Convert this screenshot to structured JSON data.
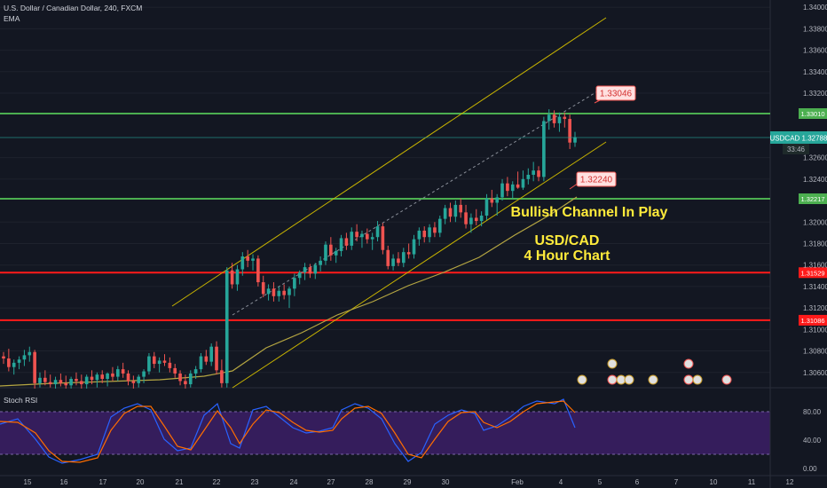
{
  "header": {
    "title": "U.S. Dollar / Canadian Dollar, 240, FXCM",
    "indicator": "EMA"
  },
  "symbol": "USDCAD",
  "price_badge": "USDCAD  1.32788",
  "countdown": "33:46",
  "oscillator_label": "Stoch RSI",
  "colors": {
    "background": "#131722",
    "up": "#26a69a",
    "down": "#ef5350",
    "support_green": "#4caf50",
    "support_red": "#ff1a1a",
    "channel": "#c8b400",
    "ema": "#b5a642",
    "annotation_text": "#ffeb3b",
    "osc_band": "#3c1f66",
    "k_line": "#2962ff",
    "d_line": "#ff6d00"
  },
  "annotations": {
    "headline": "Bullish Channel In Play",
    "pair": "USD/CAD",
    "timeframe": "4 Hour Chart",
    "callout_high": "1.33046",
    "callout_low": "1.32240"
  },
  "chart_data": [
    {
      "type": "candlestick",
      "title": "U.S. Dollar / Canadian Dollar, 240, FXCM",
      "x_ticks": [
        "15",
        "16",
        "17",
        "20",
        "21",
        "22",
        "23",
        "24",
        "27",
        "28",
        "29",
        "30",
        "Feb",
        "4",
        "5",
        "6",
        "7",
        "10",
        "11",
        "12"
      ],
      "y_ticks": [
        "1.34000",
        "1.33800",
        "1.33600",
        "1.33400",
        "1.33200",
        "1.32600",
        "1.32400",
        "1.32000",
        "1.31800",
        "1.31600",
        "1.31400",
        "1.31200",
        "1.31000",
        "1.30800",
        "1.30600"
      ],
      "ylim": [
        1.3045,
        1.3403
      ],
      "levels": [
        {
          "label": "1.33010",
          "value": 1.3301,
          "color": "#4caf50"
        },
        {
          "label": "1.32217",
          "value": 1.32217,
          "color": "#4caf50"
        },
        {
          "label": "1.31529",
          "value": 1.31529,
          "color": "#ff1a1a"
        },
        {
          "label": "1.31086",
          "value": 1.31086,
          "color": "#ff1a1a"
        }
      ],
      "last_price": 1.32788,
      "candles": [
        [
          1.3075,
          1.3079,
          1.3068,
          1.3073
        ],
        [
          1.3073,
          1.3082,
          1.3061,
          1.3065
        ],
        [
          1.3065,
          1.3072,
          1.3058,
          1.3069
        ],
        [
          1.3069,
          1.3075,
          1.3063,
          1.3072
        ],
        [
          1.3072,
          1.3081,
          1.3066,
          1.3076
        ],
        [
          1.3076,
          1.3084,
          1.307,
          1.3079
        ],
        [
          1.3079,
          1.3081,
          1.3045,
          1.305
        ],
        [
          1.305,
          1.306,
          1.3046,
          1.3055
        ],
        [
          1.3055,
          1.3062,
          1.3048,
          1.3051
        ],
        [
          1.3051,
          1.3058,
          1.3046,
          1.3049
        ],
        [
          1.3049,
          1.3056,
          1.3045,
          1.3053
        ],
        [
          1.3053,
          1.3059,
          1.3047,
          1.305
        ],
        [
          1.305,
          1.3057,
          1.3045,
          1.3048
        ],
        [
          1.3048,
          1.3056,
          1.3045,
          1.3054
        ],
        [
          1.3054,
          1.306,
          1.3048,
          1.3052
        ],
        [
          1.3052,
          1.3058,
          1.3045,
          1.3049
        ],
        [
          1.3049,
          1.3058,
          1.3045,
          1.3056
        ],
        [
          1.3056,
          1.3062,
          1.3049,
          1.3053
        ],
        [
          1.3053,
          1.306,
          1.3046,
          1.3058
        ],
        [
          1.3058,
          1.3062,
          1.305,
          1.3054
        ],
        [
          1.3054,
          1.306,
          1.3047,
          1.3059
        ],
        [
          1.3059,
          1.3065,
          1.3052,
          1.3056
        ],
        [
          1.3056,
          1.3066,
          1.3052,
          1.3063
        ],
        [
          1.3063,
          1.3069,
          1.3055,
          1.3059
        ],
        [
          1.3059,
          1.3062,
          1.3048,
          1.3052
        ],
        [
          1.3052,
          1.3057,
          1.3045,
          1.305
        ],
        [
          1.305,
          1.3058,
          1.3046,
          1.3056
        ],
        [
          1.3056,
          1.3063,
          1.305,
          1.3061
        ],
        [
          1.3061,
          1.3078,
          1.3058,
          1.3075
        ],
        [
          1.3075,
          1.3079,
          1.3064,
          1.3068
        ],
        [
          1.3068,
          1.3074,
          1.306,
          1.3071
        ],
        [
          1.3071,
          1.3077,
          1.3066,
          1.3069
        ],
        [
          1.3069,
          1.3074,
          1.306,
          1.3064
        ],
        [
          1.3064,
          1.3068,
          1.3055,
          1.3059
        ],
        [
          1.3059,
          1.3062,
          1.3048,
          1.3052
        ],
        [
          1.3052,
          1.3058,
          1.3045,
          1.3049
        ],
        [
          1.3049,
          1.3062,
          1.3046,
          1.3059
        ],
        [
          1.3059,
          1.3066,
          1.3054,
          1.3063
        ],
        [
          1.3063,
          1.3078,
          1.306,
          1.3075
        ],
        [
          1.3075,
          1.3081,
          1.3067,
          1.307
        ],
        [
          1.307,
          1.3087,
          1.3066,
          1.3084
        ],
        [
          1.3084,
          1.3089,
          1.3058,
          1.3062
        ],
        [
          1.3062,
          1.3072,
          1.3046,
          1.305
        ],
        [
          1.305,
          1.3158,
          1.3046,
          1.3155
        ],
        [
          1.3155,
          1.3162,
          1.3138,
          1.3142
        ],
        [
          1.3142,
          1.316,
          1.3136,
          1.3156
        ],
        [
          1.3156,
          1.3172,
          1.315,
          1.3168
        ],
        [
          1.3168,
          1.3174,
          1.3158,
          1.3164
        ],
        [
          1.3164,
          1.317,
          1.3155,
          1.3166
        ],
        [
          1.3166,
          1.3169,
          1.314,
          1.3144
        ],
        [
          1.3144,
          1.315,
          1.313,
          1.3133
        ],
        [
          1.3133,
          1.3142,
          1.3127,
          1.3138
        ],
        [
          1.3138,
          1.3144,
          1.3126,
          1.3131
        ],
        [
          1.3131,
          1.314,
          1.3126,
          1.3136
        ],
        [
          1.3136,
          1.3142,
          1.3128,
          1.3132
        ],
        [
          1.3132,
          1.314,
          1.312,
          1.3138
        ],
        [
          1.3138,
          1.3152,
          1.3131,
          1.3148
        ],
        [
          1.3148,
          1.3155,
          1.3142,
          1.3153
        ],
        [
          1.3153,
          1.3162,
          1.3146,
          1.3158
        ],
        [
          1.3158,
          1.3161,
          1.3148,
          1.3152
        ],
        [
          1.3152,
          1.3162,
          1.3147,
          1.316
        ],
        [
          1.316,
          1.3168,
          1.3154,
          1.3164
        ],
        [
          1.3164,
          1.3182,
          1.316,
          1.3179
        ],
        [
          1.3179,
          1.3186,
          1.3164,
          1.3169
        ],
        [
          1.3169,
          1.3176,
          1.3162,
          1.3173
        ],
        [
          1.3173,
          1.3188,
          1.3168,
          1.3185
        ],
        [
          1.3185,
          1.319,
          1.3174,
          1.3178
        ],
        [
          1.3178,
          1.3195,
          1.3174,
          1.3191
        ],
        [
          1.3191,
          1.3198,
          1.3182,
          1.3186
        ],
        [
          1.3186,
          1.3192,
          1.3176,
          1.3189
        ],
        [
          1.3189,
          1.3194,
          1.318,
          1.3184
        ],
        [
          1.3184,
          1.319,
          1.3174,
          1.3186
        ],
        [
          1.3186,
          1.3201,
          1.3182,
          1.3196
        ],
        [
          1.3196,
          1.3199,
          1.317,
          1.3174
        ],
        [
          1.3174,
          1.3178,
          1.3156,
          1.3159
        ],
        [
          1.3159,
          1.317,
          1.3155,
          1.3166
        ],
        [
          1.3166,
          1.3172,
          1.3159,
          1.3162
        ],
        [
          1.3162,
          1.3176,
          1.3158,
          1.3172
        ],
        [
          1.3172,
          1.318,
          1.3166,
          1.317
        ],
        [
          1.317,
          1.3188,
          1.3166,
          1.3184
        ],
        [
          1.3184,
          1.3195,
          1.3178,
          1.3192
        ],
        [
          1.3192,
          1.3196,
          1.3181,
          1.3186
        ],
        [
          1.3186,
          1.3198,
          1.3181,
          1.3195
        ],
        [
          1.3195,
          1.32,
          1.3186,
          1.319
        ],
        [
          1.319,
          1.3206,
          1.3186,
          1.3203
        ],
        [
          1.3203,
          1.3216,
          1.3198,
          1.3213
        ],
        [
          1.3213,
          1.3218,
          1.32,
          1.3205
        ],
        [
          1.3205,
          1.322,
          1.32,
          1.3216
        ],
        [
          1.3216,
          1.3222,
          1.3204,
          1.3209
        ],
        [
          1.3209,
          1.3216,
          1.3194,
          1.3198
        ],
        [
          1.3198,
          1.3208,
          1.319,
          1.3204
        ],
        [
          1.3204,
          1.3212,
          1.3197,
          1.3201
        ],
        [
          1.3201,
          1.321,
          1.3196,
          1.3206
        ],
        [
          1.3206,
          1.3226,
          1.3202,
          1.3222
        ],
        [
          1.3222,
          1.323,
          1.3214,
          1.3218
        ],
        [
          1.3218,
          1.3226,
          1.3206,
          1.3223
        ],
        [
          1.3223,
          1.324,
          1.322,
          1.3236
        ],
        [
          1.3236,
          1.3242,
          1.3224,
          1.3229
        ],
        [
          1.3229,
          1.3238,
          1.3222,
          1.3235
        ],
        [
          1.3235,
          1.3247,
          1.3231,
          1.3232
        ],
        [
          1.3232,
          1.3248,
          1.323,
          1.324
        ],
        [
          1.324,
          1.325,
          1.3235,
          1.3244
        ],
        [
          1.3244,
          1.3256,
          1.3238,
          1.3248
        ],
        [
          1.3248,
          1.3252,
          1.3238,
          1.3242
        ],
        [
          1.3242,
          1.3298,
          1.3238,
          1.3294
        ],
        [
          1.3294,
          1.3305,
          1.3286,
          1.33
        ],
        [
          1.33,
          1.3304,
          1.3288,
          1.3292
        ],
        [
          1.3292,
          1.3302,
          1.3284,
          1.3298
        ],
        [
          1.3298,
          1.3302,
          1.3288,
          1.3296
        ],
        [
          1.3296,
          1.33,
          1.3268,
          1.3274
        ],
        [
          1.3274,
          1.3284,
          1.327,
          1.3279
        ]
      ]
    },
    {
      "type": "line",
      "title": "Stoch RSI",
      "y_ticks": [
        "80.00",
        "40.00",
        "0.00"
      ],
      "ylim": [
        0,
        100
      ],
      "band": [
        20,
        80
      ],
      "series": []
    }
  ]
}
